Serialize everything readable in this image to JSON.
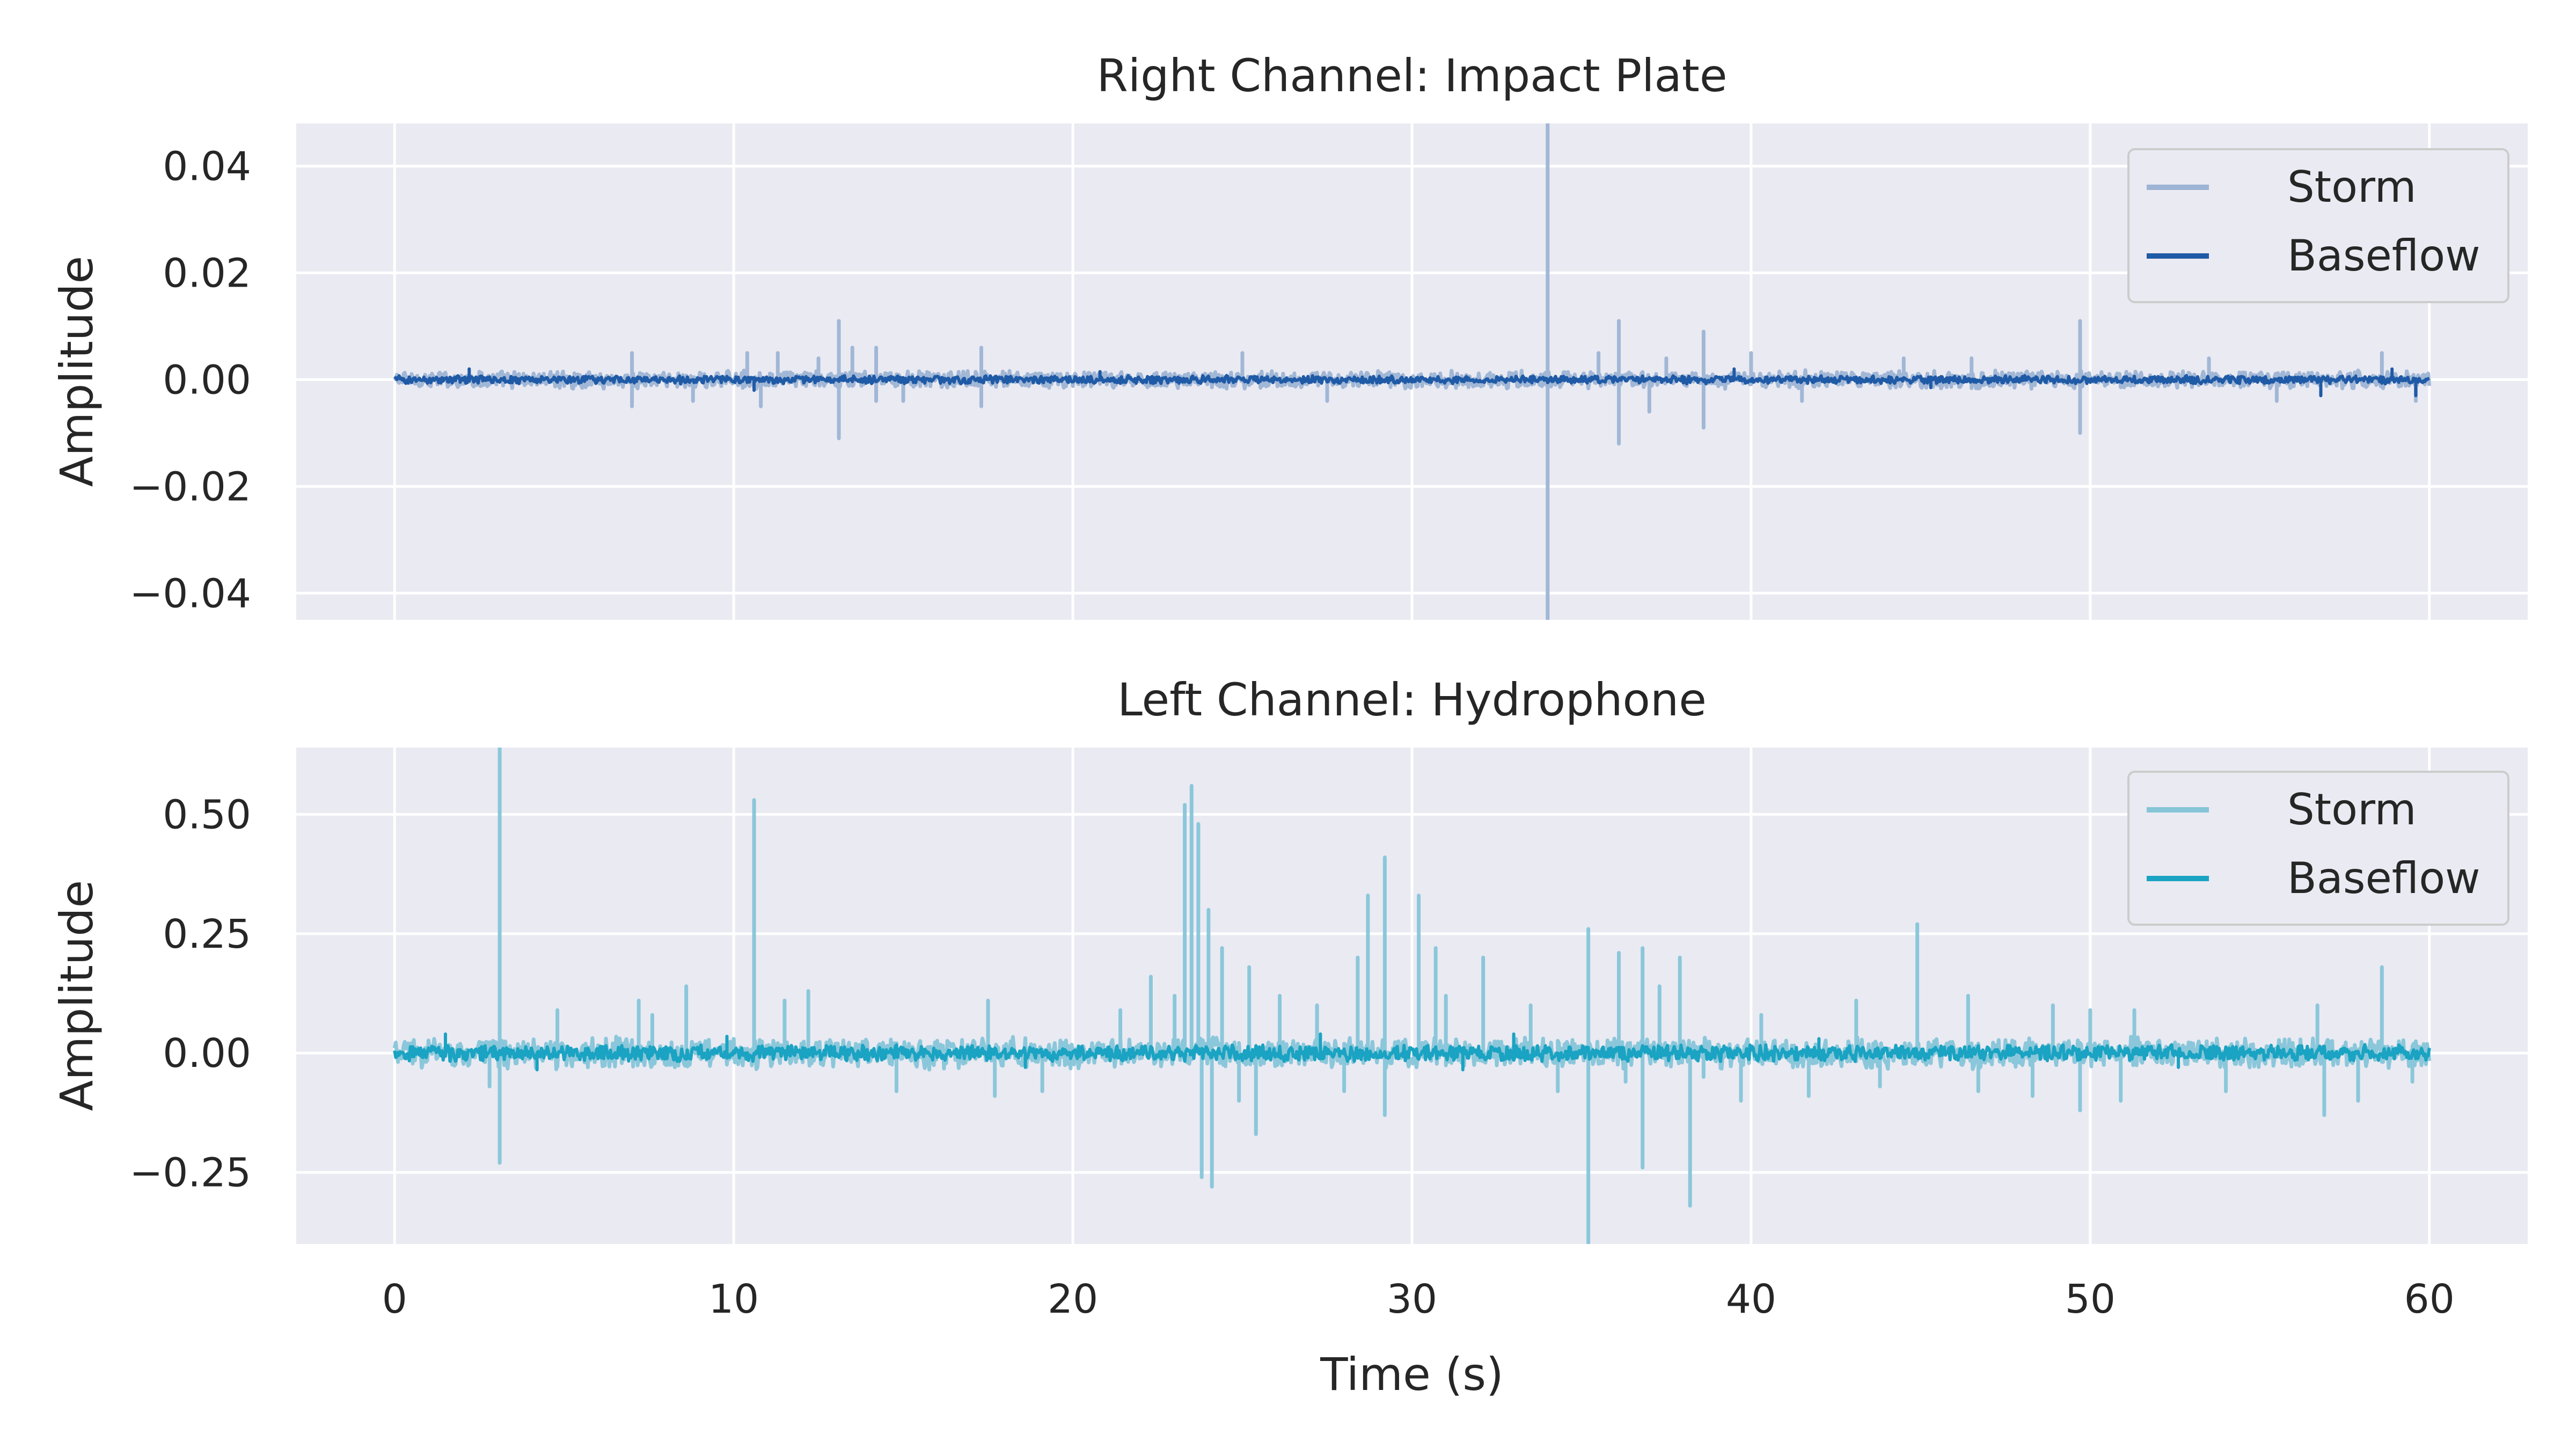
{
  "chart_data": [
    {
      "type": "line",
      "title": "Right Channel: Impact Plate",
      "xlabel": "",
      "ylabel": "Amplitude",
      "xlim": [
        -2.9,
        62.9
      ],
      "ylim": [
        -0.045,
        0.048
      ],
      "x_ticks": [
        0,
        10,
        20,
        30,
        40,
        50,
        60
      ],
      "x_tick_labels": [
        "0",
        "10",
        "20",
        "30",
        "40",
        "50",
        "60"
      ],
      "y_ticks": [
        -0.04,
        -0.02,
        0.0,
        0.02,
        0.04
      ],
      "y_tick_labels": [
        "−0.04",
        "−0.02",
        "0.00",
        "0.02",
        "0.04"
      ],
      "grid": true,
      "legend_position": "top-right",
      "series": [
        {
          "name": "Storm",
          "color": "#9db4d4",
          "noise_amplitude": 0.0018,
          "spikes": [
            {
              "x": 7.0,
              "y": 0.005
            },
            {
              "x": 7.0,
              "y": -0.005
            },
            {
              "x": 8.8,
              "y": -0.004
            },
            {
              "x": 10.4,
              "y": 0.005
            },
            {
              "x": 10.8,
              "y": -0.005
            },
            {
              "x": 11.3,
              "y": 0.005
            },
            {
              "x": 12.5,
              "y": 0.004
            },
            {
              "x": 13.1,
              "y": 0.011
            },
            {
              "x": 13.1,
              "y": -0.011
            },
            {
              "x": 13.5,
              "y": 0.006
            },
            {
              "x": 14.2,
              "y": 0.006
            },
            {
              "x": 14.2,
              "y": -0.004
            },
            {
              "x": 15.0,
              "y": -0.004
            },
            {
              "x": 17.3,
              "y": 0.006
            },
            {
              "x": 17.3,
              "y": -0.005
            },
            {
              "x": 25.0,
              "y": 0.005
            },
            {
              "x": 27.5,
              "y": -0.004
            },
            {
              "x": 34.0,
              "y": 0.048
            },
            {
              "x": 34.0,
              "y": -0.045
            },
            {
              "x": 35.5,
              "y": 0.005
            },
            {
              "x": 36.1,
              "y": 0.011
            },
            {
              "x": 36.1,
              "y": -0.012
            },
            {
              "x": 37.0,
              "y": -0.006
            },
            {
              "x": 37.5,
              "y": 0.004
            },
            {
              "x": 38.6,
              "y": 0.009
            },
            {
              "x": 38.6,
              "y": -0.009
            },
            {
              "x": 40.0,
              "y": 0.005
            },
            {
              "x": 41.5,
              "y": -0.004
            },
            {
              "x": 44.5,
              "y": 0.004
            },
            {
              "x": 46.5,
              "y": 0.004
            },
            {
              "x": 49.7,
              "y": 0.011
            },
            {
              "x": 49.7,
              "y": -0.01
            },
            {
              "x": 53.5,
              "y": 0.004
            },
            {
              "x": 55.5,
              "y": -0.004
            },
            {
              "x": 58.6,
              "y": 0.005
            },
            {
              "x": 59.6,
              "y": -0.004
            }
          ]
        },
        {
          "name": "Baseflow",
          "color": "#1f5aa6",
          "noise_amplitude": 0.0008,
          "spikes": [
            {
              "x": 2.2,
              "y": 0.002
            },
            {
              "x": 10.6,
              "y": -0.002
            },
            {
              "x": 20.8,
              "y": 0.0015
            },
            {
              "x": 39.5,
              "y": 0.002
            },
            {
              "x": 45.3,
              "y": -0.0015
            },
            {
              "x": 56.8,
              "y": -0.003
            },
            {
              "x": 58.9,
              "y": 0.002
            },
            {
              "x": 59.6,
              "y": -0.003
            }
          ]
        }
      ]
    },
    {
      "type": "line",
      "title": "Left Channel: Hydrophone",
      "xlabel": "Time (s)",
      "ylabel": "Amplitude",
      "xlim": [
        -2.9,
        62.9
      ],
      "ylim": [
        -0.4,
        0.64
      ],
      "x_ticks": [
        0,
        10,
        20,
        30,
        40,
        50,
        60
      ],
      "x_tick_labels": [
        "0",
        "10",
        "20",
        "30",
        "40",
        "50",
        "60"
      ],
      "y_ticks": [
        -0.25,
        0.0,
        0.25,
        0.5
      ],
      "y_tick_labels": [
        "−0.25",
        "0.00",
        "0.25",
        "0.50"
      ],
      "grid": true,
      "legend_position": "top-right",
      "series": [
        {
          "name": "Storm",
          "color": "#86c5d8",
          "noise_amplitude": 0.035,
          "spikes": [
            {
              "x": 3.1,
              "y": 0.64
            },
            {
              "x": 3.1,
              "y": -0.23
            },
            {
              "x": 2.8,
              "y": -0.07
            },
            {
              "x": 4.8,
              "y": 0.09
            },
            {
              "x": 7.2,
              "y": 0.11
            },
            {
              "x": 7.6,
              "y": 0.08
            },
            {
              "x": 8.6,
              "y": 0.14
            },
            {
              "x": 10.6,
              "y": 0.53
            },
            {
              "x": 11.5,
              "y": 0.11
            },
            {
              "x": 12.2,
              "y": 0.13
            },
            {
              "x": 14.8,
              "y": -0.08
            },
            {
              "x": 17.5,
              "y": 0.11
            },
            {
              "x": 17.7,
              "y": -0.09
            },
            {
              "x": 19.1,
              "y": -0.08
            },
            {
              "x": 21.4,
              "y": 0.09
            },
            {
              "x": 22.3,
              "y": 0.16
            },
            {
              "x": 23.0,
              "y": 0.12
            },
            {
              "x": 23.3,
              "y": 0.52
            },
            {
              "x": 23.5,
              "y": 0.56
            },
            {
              "x": 23.7,
              "y": 0.48
            },
            {
              "x": 23.8,
              "y": -0.26
            },
            {
              "x": 24.0,
              "y": 0.3
            },
            {
              "x": 24.1,
              "y": -0.28
            },
            {
              "x": 24.4,
              "y": 0.22
            },
            {
              "x": 24.9,
              "y": -0.1
            },
            {
              "x": 25.2,
              "y": 0.18
            },
            {
              "x": 25.4,
              "y": -0.17
            },
            {
              "x": 26.1,
              "y": 0.12
            },
            {
              "x": 27.2,
              "y": 0.1
            },
            {
              "x": 28.0,
              "y": -0.08
            },
            {
              "x": 28.4,
              "y": 0.2
            },
            {
              "x": 28.7,
              "y": 0.33
            },
            {
              "x": 29.2,
              "y": 0.41
            },
            {
              "x": 29.2,
              "y": -0.13
            },
            {
              "x": 30.2,
              "y": 0.33
            },
            {
              "x": 30.7,
              "y": 0.22
            },
            {
              "x": 31.0,
              "y": 0.12
            },
            {
              "x": 32.1,
              "y": 0.2
            },
            {
              "x": 33.5,
              "y": 0.1
            },
            {
              "x": 34.3,
              "y": -0.08
            },
            {
              "x": 35.2,
              "y": 0.26
            },
            {
              "x": 35.2,
              "y": -0.4
            },
            {
              "x": 36.1,
              "y": 0.21
            },
            {
              "x": 36.3,
              "y": -0.06
            },
            {
              "x": 36.8,
              "y": 0.22
            },
            {
              "x": 36.8,
              "y": -0.24
            },
            {
              "x": 37.3,
              "y": 0.14
            },
            {
              "x": 37.9,
              "y": 0.2
            },
            {
              "x": 38.2,
              "y": -0.32
            },
            {
              "x": 38.6,
              "y": -0.05
            },
            {
              "x": 39.7,
              "y": -0.1
            },
            {
              "x": 40.3,
              "y": 0.08
            },
            {
              "x": 41.7,
              "y": -0.09
            },
            {
              "x": 43.1,
              "y": 0.11
            },
            {
              "x": 43.8,
              "y": -0.07
            },
            {
              "x": 44.9,
              "y": 0.27
            },
            {
              "x": 46.4,
              "y": 0.12
            },
            {
              "x": 46.7,
              "y": -0.08
            },
            {
              "x": 48.3,
              "y": -0.09
            },
            {
              "x": 48.9,
              "y": 0.1
            },
            {
              "x": 49.7,
              "y": -0.12
            },
            {
              "x": 50.0,
              "y": 0.09
            },
            {
              "x": 50.9,
              "y": -0.1
            },
            {
              "x": 51.3,
              "y": 0.09
            },
            {
              "x": 54.0,
              "y": -0.08
            },
            {
              "x": 56.7,
              "y": 0.1
            },
            {
              "x": 56.9,
              "y": -0.13
            },
            {
              "x": 57.9,
              "y": -0.1
            },
            {
              "x": 58.6,
              "y": 0.18
            },
            {
              "x": 59.5,
              "y": -0.06
            }
          ]
        },
        {
          "name": "Baseflow",
          "color": "#1aa3c2",
          "noise_amplitude": 0.018,
          "spikes": [
            {
              "x": 1.5,
              "y": 0.04
            },
            {
              "x": 4.2,
              "y": -0.035
            },
            {
              "x": 9.8,
              "y": 0.035
            },
            {
              "x": 18.6,
              "y": -0.03
            },
            {
              "x": 27.3,
              "y": 0.04
            },
            {
              "x": 31.5,
              "y": -0.035
            },
            {
              "x": 33.0,
              "y": 0.04
            },
            {
              "x": 42.0,
              "y": 0.03
            },
            {
              "x": 52.6,
              "y": -0.03
            }
          ]
        }
      ]
    }
  ]
}
